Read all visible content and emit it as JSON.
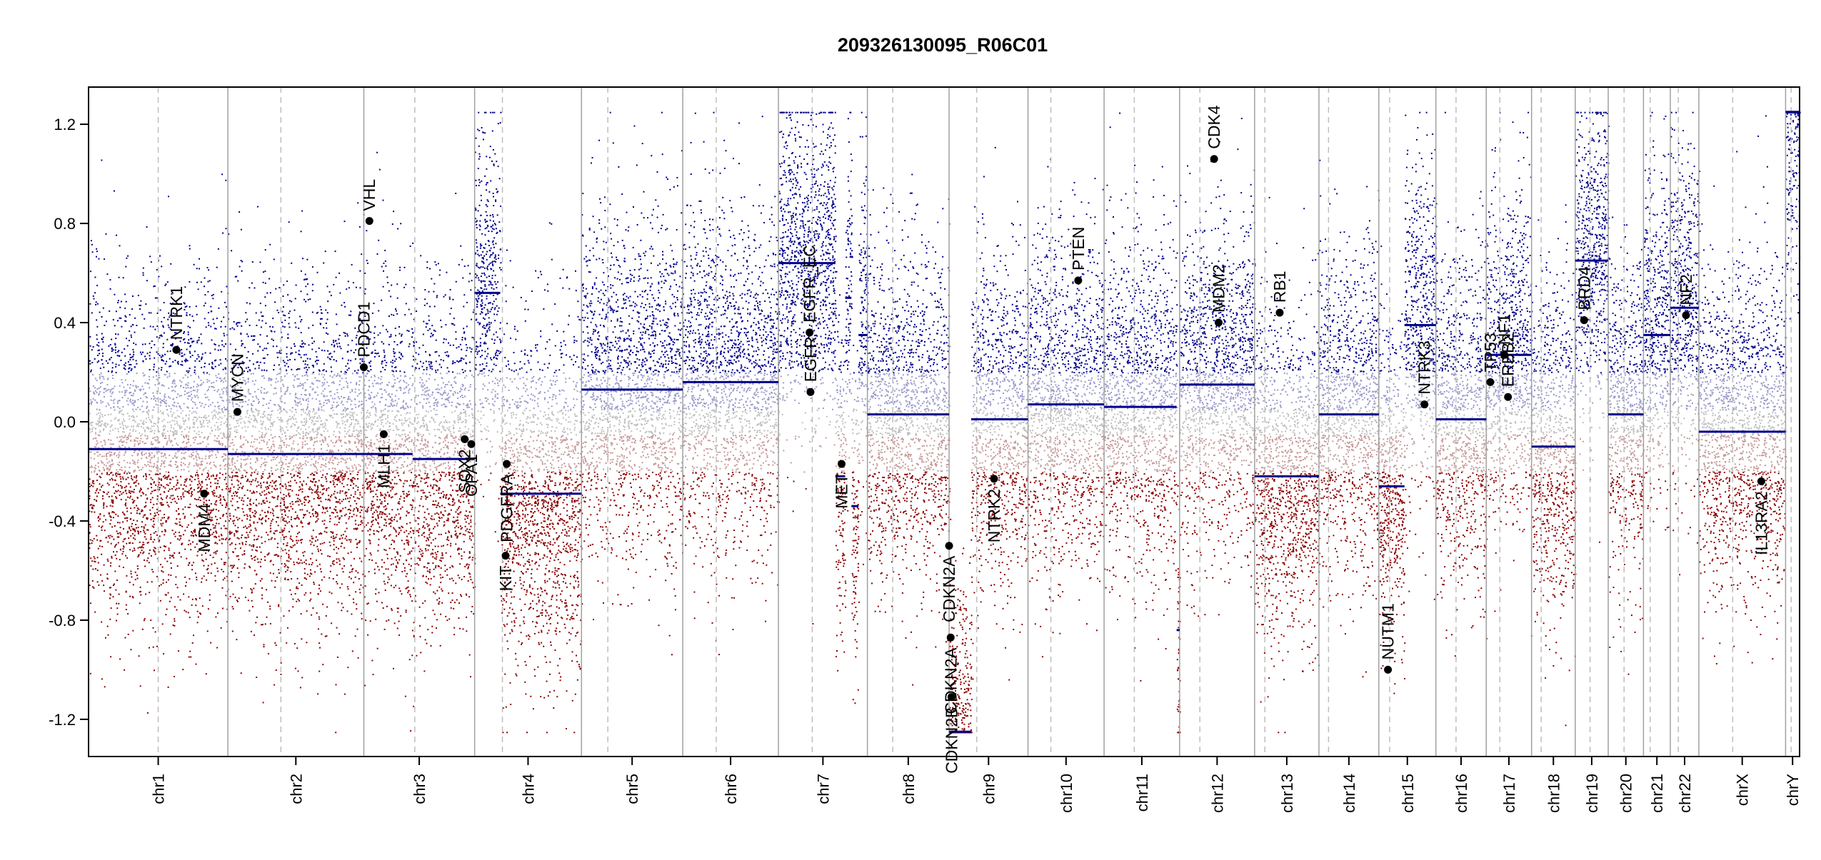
{
  "chart_data": {
    "type": "scatter",
    "title": "209326130095_R06C01",
    "xlabel": "",
    "ylabel": "",
    "ylim": [
      -1.35,
      1.35
    ],
    "y_ticks": [
      -1.2,
      -0.8,
      -0.4,
      0.0,
      0.4,
      0.8,
      1.2
    ],
    "y_tick_labels": [
      "-1.2",
      "-0.8",
      "-0.4",
      "0.0",
      "0.4",
      "0.8",
      "1.2"
    ],
    "grid": false,
    "legend": "none",
    "colors": {
      "gain": "#00008B",
      "loss": "#8B0000",
      "neutral": "#BEBEBE",
      "segment": "#00008B",
      "gene": "#000000"
    },
    "chromosomes": [
      {
        "name": "chr1",
        "length": 249,
        "centromere": 0.5,
        "segments": [
          {
            "start": 0,
            "end": 1,
            "value": -0.11
          }
        ]
      },
      {
        "name": "chr2",
        "length": 243,
        "centromere": 0.39,
        "segments": [
          {
            "start": 0,
            "end": 1,
            "value": -0.13
          }
        ]
      },
      {
        "name": "chr3",
        "length": 198,
        "centromere": 0.46,
        "segments": [
          {
            "start": 0,
            "end": 0.44,
            "value": -0.13
          },
          {
            "start": 0.44,
            "end": 1,
            "value": -0.15
          }
        ]
      },
      {
        "name": "chr4",
        "length": 191,
        "centromere": 0.26,
        "segments": [
          {
            "start": 0,
            "end": 0.24,
            "value": 0.52
          },
          {
            "start": 0.24,
            "end": 1,
            "value": -0.29
          }
        ]
      },
      {
        "name": "chr5",
        "length": 181,
        "centromere": 0.26,
        "segments": [
          {
            "start": 0,
            "end": 1,
            "value": 0.13
          }
        ]
      },
      {
        "name": "chr6",
        "length": 171,
        "centromere": 0.35,
        "segments": [
          {
            "start": 0,
            "end": 1,
            "value": 0.16
          }
        ]
      },
      {
        "name": "chr7",
        "length": 159,
        "centromere": 0.38,
        "segments": [
          {
            "start": 0,
            "end": 0.64,
            "value": 0.64
          },
          {
            "start": 0.64,
            "end": 0.75,
            "value": -0.22
          },
          {
            "start": 0.75,
            "end": 0.82,
            "value": 0.5
          },
          {
            "start": 0.82,
            "end": 0.9,
            "value": -0.34
          },
          {
            "start": 0.9,
            "end": 1,
            "value": 0.35
          }
        ]
      },
      {
        "name": "chr8",
        "length": 146,
        "centromere": 0.31,
        "segments": [
          {
            "start": 0,
            "end": 1,
            "value": 0.03
          }
        ]
      },
      {
        "name": "chr9",
        "length": 141,
        "centromere": 0.35,
        "segments": [
          {
            "start": 0,
            "end": 0.28,
            "value": -1.25
          },
          {
            "start": 0.28,
            "end": 1,
            "value": 0.01
          }
        ]
      },
      {
        "name": "chr10",
        "length": 136,
        "centromere": 0.3,
        "segments": [
          {
            "start": 0,
            "end": 1,
            "value": 0.07
          }
        ]
      },
      {
        "name": "chr11",
        "length": 135,
        "centromere": 0.4,
        "segments": [
          {
            "start": 0,
            "end": 0.96,
            "value": 0.06
          },
          {
            "start": 0.96,
            "end": 1,
            "value": -0.84
          }
        ]
      },
      {
        "name": "chr12",
        "length": 134,
        "centromere": 0.27,
        "segments": [
          {
            "start": 0,
            "end": 1,
            "value": 0.15
          }
        ]
      },
      {
        "name": "chr13",
        "length": 115,
        "centromere": 0.16,
        "segments": [
          {
            "start": 0,
            "end": 1,
            "value": -0.22
          }
        ]
      },
      {
        "name": "chr14",
        "length": 107,
        "centromere": 0.16,
        "segments": [
          {
            "start": 0,
            "end": 1,
            "value": 0.03
          }
        ]
      },
      {
        "name": "chr15",
        "length": 102,
        "centromere": 0.19,
        "segments": [
          {
            "start": 0,
            "end": 0.45,
            "value": -0.26
          },
          {
            "start": 0.45,
            "end": 1,
            "value": 0.39
          }
        ]
      },
      {
        "name": "chr16",
        "length": 90,
        "centromere": 0.4,
        "segments": [
          {
            "start": 0,
            "end": 1,
            "value": 0.01
          }
        ]
      },
      {
        "name": "chr17",
        "length": 81,
        "centromere": 0.3,
        "segments": [
          {
            "start": 0,
            "end": 1,
            "value": 0.27
          }
        ]
      },
      {
        "name": "chr18",
        "length": 78,
        "centromere": 0.22,
        "segments": [
          {
            "start": 0,
            "end": 1,
            "value": -0.1
          }
        ]
      },
      {
        "name": "chr19",
        "length": 59,
        "centromere": 0.45,
        "segments": [
          {
            "start": 0,
            "end": 1,
            "value": 0.65
          }
        ]
      },
      {
        "name": "chr20",
        "length": 63,
        "centromere": 0.45,
        "segments": [
          {
            "start": 0,
            "end": 1,
            "value": 0.03
          }
        ]
      },
      {
        "name": "chr21",
        "length": 48,
        "centromere": 0.25,
        "segments": [
          {
            "start": 0,
            "end": 1,
            "value": 0.35
          }
        ]
      },
      {
        "name": "chr22",
        "length": 51,
        "centromere": 0.28,
        "segments": [
          {
            "start": 0,
            "end": 1,
            "value": 0.46
          }
        ]
      },
      {
        "name": "chrX",
        "length": 155,
        "centromere": 0.39,
        "segments": [
          {
            "start": 0,
            "end": 1,
            "value": -0.04
          }
        ]
      },
      {
        "name": "chrY",
        "length": 25,
        "centromere": 0.4,
        "segments": [
          {
            "start": 0,
            "end": 1,
            "value": 1.25
          }
        ]
      }
    ],
    "genes": [
      {
        "name": "NTRK1",
        "chr": "chr1",
        "pos": 0.63,
        "value": 0.29,
        "label_side": "above"
      },
      {
        "name": "MDM4",
        "chr": "chr1",
        "pos": 0.83,
        "value": -0.29,
        "label_side": "below"
      },
      {
        "name": "MYCN",
        "chr": "chr2",
        "pos": 0.07,
        "value": 0.04,
        "label_side": "above"
      },
      {
        "name": "VHL",
        "chr": "chr3",
        "pos": 0.05,
        "value": 0.81,
        "label_side": "above"
      },
      {
        "name": "PDCD1",
        "chr": "chr3",
        "pos": 0.0,
        "value": 0.22,
        "label_side": "above"
      },
      {
        "name": "MLH1",
        "chr": "chr3",
        "pos": 0.18,
        "value": -0.05,
        "label_side": "below"
      },
      {
        "name": "SOX2",
        "chr": "chr3",
        "pos": 0.91,
        "value": -0.07,
        "label_side": "below"
      },
      {
        "name": "OPA1",
        "chr": "chr3",
        "pos": 0.97,
        "value": -0.09,
        "label_side": "below"
      },
      {
        "name": "PDGFRA",
        "chr": "chr4",
        "pos": 0.3,
        "value": -0.17,
        "label_side": "below"
      },
      {
        "name": "KIT",
        "chr": "chr4",
        "pos": 0.29,
        "value": -0.54,
        "label_side": "below"
      },
      {
        "name": "EGFR_EC",
        "chr": "chr7",
        "pos": 0.35,
        "value": 0.36,
        "label_side": "above"
      },
      {
        "name": "EGFR",
        "chr": "chr7",
        "pos": 0.36,
        "value": 0.12,
        "label_side": "above"
      },
      {
        "name": "MET",
        "chr": "chr7",
        "pos": 0.71,
        "value": -0.17,
        "label_side": "below"
      },
      {
        "name": "CDKN2A",
        "chr": "chr9",
        "pos": 0.0,
        "value": -0.5,
        "label_side": "below"
      },
      {
        "name": "CDKN2B",
        "chr": "chr9",
        "pos": 0.03,
        "value": -1.11,
        "label_side": "below"
      },
      {
        "name": "CDKN2A",
        "chr": "chr9",
        "pos": 0.02,
        "value": -0.87,
        "label_side": "below"
      },
      {
        "name": "NTRK2",
        "chr": "chr9",
        "pos": 0.57,
        "value": -0.23,
        "label_side": "below"
      },
      {
        "name": "PTEN",
        "chr": "chr10",
        "pos": 0.66,
        "value": 0.57,
        "label_side": "above"
      },
      {
        "name": "CDK4",
        "chr": "chr12",
        "pos": 0.46,
        "value": 1.06,
        "label_side": "above"
      },
      {
        "name": "MDM2",
        "chr": "chr12",
        "pos": 0.52,
        "value": 0.4,
        "label_side": "above"
      },
      {
        "name": "RB1",
        "chr": "chr13",
        "pos": 0.39,
        "value": 0.44,
        "label_side": "above"
      },
      {
        "name": "NUTM1",
        "chr": "chr15",
        "pos": 0.16,
        "value": -1.0,
        "label_side": "above"
      },
      {
        "name": "NTRK3",
        "chr": "chr15",
        "pos": 0.8,
        "value": 0.07,
        "label_side": "above"
      },
      {
        "name": "TP53",
        "chr": "chr17",
        "pos": 0.09,
        "value": 0.16,
        "label_side": "above"
      },
      {
        "name": "NF1",
        "chr": "chr17",
        "pos": 0.4,
        "value": 0.27,
        "label_side": "above"
      },
      {
        "name": "ERBB2",
        "chr": "chr17",
        "pos": 0.48,
        "value": 0.1,
        "label_side": "above"
      },
      {
        "name": "BRD4",
        "chr": "chr19",
        "pos": 0.27,
        "value": 0.41,
        "label_side": "above"
      },
      {
        "name": "NF2",
        "chr": "chr22",
        "pos": 0.55,
        "value": 0.43,
        "label_side": "above"
      },
      {
        "name": "IL13RA2",
        "chr": "chrX",
        "pos": 0.72,
        "value": -0.24,
        "label_side": "below"
      }
    ]
  }
}
